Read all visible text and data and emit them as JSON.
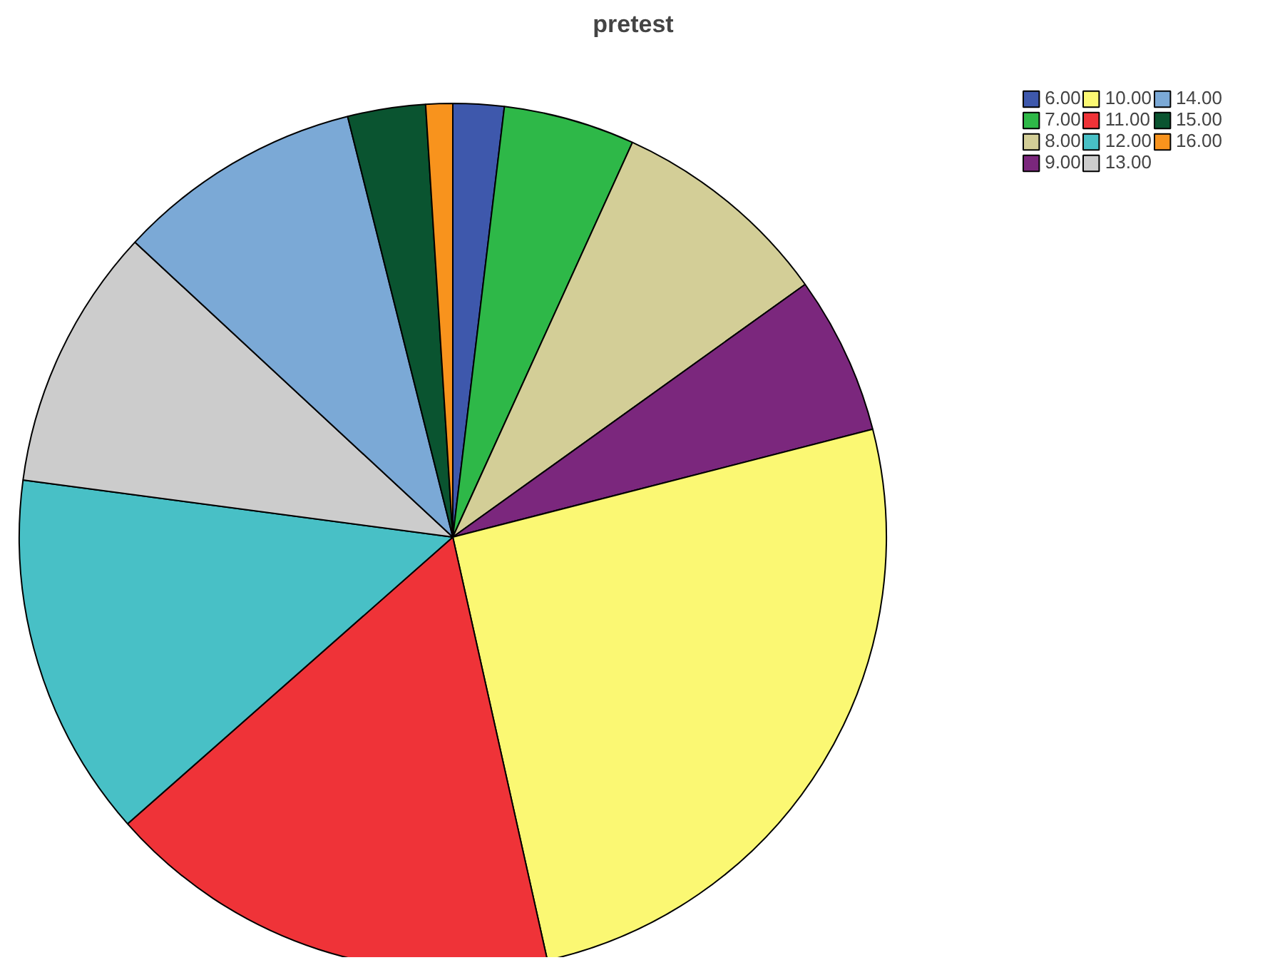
{
  "chart_data": {
    "type": "pie",
    "title": "pretest",
    "categories": [
      "6.00",
      "7.00",
      "8.00",
      "9.00",
      "10.00",
      "11.00",
      "12.00",
      "13.00",
      "14.00",
      "15.00",
      "16.00"
    ],
    "values": [
      1.9,
      4.9,
      8.3,
      5.9,
      25.5,
      17.0,
      13.6,
      9.8,
      9.2,
      2.9,
      1.0
    ],
    "colors": [
      "#3e58ac",
      "#2eb848",
      "#d3ce97",
      "#7b277d",
      "#fbf873",
      "#ef3338",
      "#48c0c6",
      "#cccccc",
      "#7ba9d6",
      "#0a5430",
      "#f8931d"
    ],
    "legend": "top right"
  }
}
